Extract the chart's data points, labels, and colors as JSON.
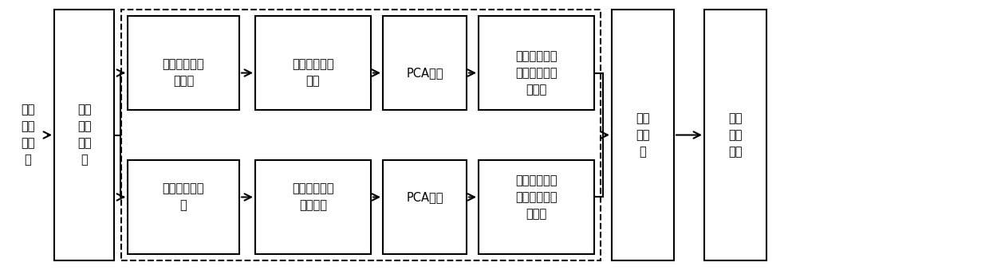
{
  "bg_color": "#ffffff",
  "border_color": "#000000",
  "text_color": "#000000",
  "fig_width": 12.4,
  "fig_height": 3.39,
  "font_size": 10.5,
  "source_text": "原始\n音视\n频数\n据",
  "clip_text": "音视\n频片\n段截\n取",
  "preproc_v_text": "语音情感信号\n预处理",
  "preproc_f_text": "面部表情预处\n理",
  "feat_v_text": "语音情感特征\n提取",
  "feat_f_text": "面部表情情感\n特征提取",
  "pca_v_text": "PCA降维",
  "pca_f_text": "PCA降维",
  "cls_v_text": "基于朴素贝叶\n斯的语音情感\n分类器",
  "cls_f_text": "基于朴素贝叶\n斯的面部表情\n分类器",
  "fusion_text": "决策\n级融\n合",
  "result_text": "最终\n识别\n结果"
}
